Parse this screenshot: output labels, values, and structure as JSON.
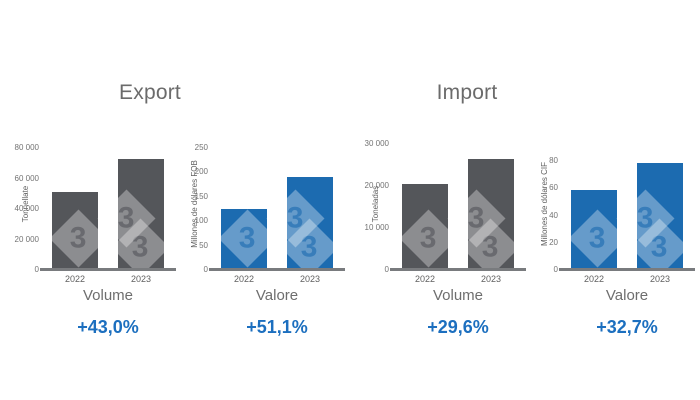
{
  "page": {
    "background": "#FFFFFF"
  },
  "sections": {
    "export_title": "Export",
    "import_title": "Import"
  },
  "watermark": {
    "glyph": "3"
  },
  "colors": {
    "bar_gray": "#54565A",
    "bar_blue": "#1C6BB0",
    "percent_blue": "#1C6FBF",
    "axis_line": "#797B7E",
    "title_gray": "#6B6B6B",
    "tick_gray": "#737373"
  },
  "chart_data": [
    {
      "type": "bar",
      "section": "Export",
      "ylabel": "Tonnellate",
      "xlabel": "Volume",
      "categories": [
        "2022",
        "2023"
      ],
      "values": [
        51000,
        73000
      ],
      "yticks": [
        0,
        20000,
        40000,
        60000,
        80000
      ],
      "ytick_labels": [
        "0",
        "20 000",
        "40 000",
        "60 000",
        "80 000"
      ],
      "ylim": [
        0,
        80000
      ],
      "annotation": "+43,0%",
      "bar_color": "#54565A",
      "grid": false,
      "legend": false
    },
    {
      "type": "bar",
      "section": "Export",
      "ylabel": "Millones de dólares FOB",
      "xlabel": "Valore",
      "categories": [
        "2022",
        "2023"
      ],
      "values": [
        126,
        190
      ],
      "yticks": [
        0,
        50,
        100,
        150,
        200,
        250
      ],
      "ytick_labels": [
        "0",
        "50",
        "100",
        "150",
        "200",
        "250"
      ],
      "ylim": [
        0,
        250
      ],
      "annotation": "+51,1%",
      "bar_color": "#1C6BB0",
      "grid": false,
      "legend": false
    },
    {
      "type": "bar",
      "section": "Import",
      "ylabel": "Toneladas",
      "xlabel": "Volume",
      "categories": [
        "2022",
        "2023"
      ],
      "values": [
        20400,
        26400
      ],
      "yticks": [
        0,
        10000,
        20000,
        30000
      ],
      "ytick_labels": [
        "0",
        "10 000",
        "20 000",
        "30 000"
      ],
      "ylim": [
        0,
        30000
      ],
      "annotation": "+29,6%",
      "bar_color": "#54565A",
      "grid": false,
      "legend": false
    },
    {
      "type": "bar",
      "section": "Import",
      "ylabel": "Millones de dólares CIF",
      "xlabel": "Valore",
      "categories": [
        "2022",
        "2023"
      ],
      "values": [
        59,
        78.3
      ],
      "yticks": [
        0,
        20,
        40,
        60,
        80
      ],
      "ytick_labels": [
        "0",
        "20",
        "40",
        "60",
        "80"
      ],
      "ylim": [
        0,
        80
      ],
      "annotation": "+32,7%",
      "bar_color": "#1C6BB0",
      "grid": false,
      "legend": false
    }
  ]
}
